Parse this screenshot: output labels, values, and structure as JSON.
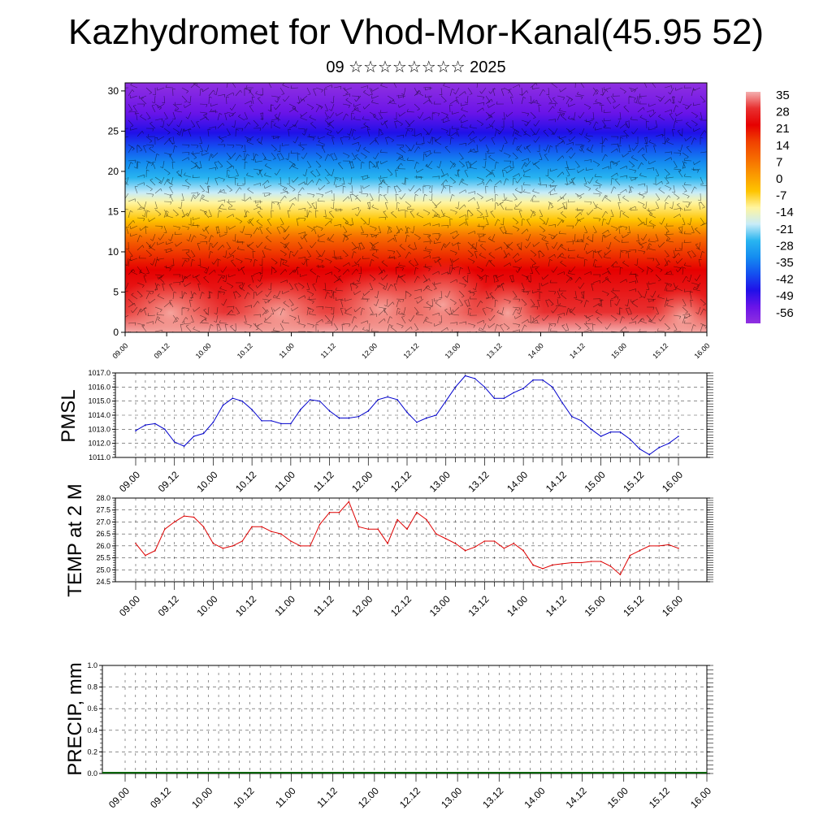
{
  "header": {
    "title": "Kazhydromet for Vhod-Mor-Kanal(45.95 52)",
    "subtitle": "09 ☆☆☆☆☆☆☆☆ 2025"
  },
  "chart_data": [
    {
      "type": "heatmap",
      "x_ticks": [
        "09.00",
        "09.12",
        "10.00",
        "10.12",
        "11.00",
        "11.12",
        "12.00",
        "12.12",
        "13.00",
        "13.12",
        "14.00",
        "14.12",
        "15.00",
        "15.12",
        "16.00"
      ],
      "y_ticks": [
        "0",
        "5",
        "10",
        "15",
        "20",
        "25",
        "30"
      ],
      "ylim": [
        0,
        31
      ],
      "colorbar": {
        "labels": [
          "35",
          "28",
          "21",
          "14",
          "7",
          "0",
          "-7",
          "-14",
          "-21",
          "-28",
          "-35",
          "-42",
          "-49",
          "-56"
        ],
        "colors": [
          "#f4b0b0",
          "#e83030",
          "#e60000",
          "#f04000",
          "#f66a00",
          "#fa9800",
          "#fec400",
          "#fff5a0",
          "#c8ecf8",
          "#28b4f0",
          "#148cf0",
          "#1450f0",
          "#2010e8",
          "#6a14e8",
          "#9030e0"
        ]
      },
      "overlay": "wind-barbs"
    },
    {
      "type": "line",
      "ylabel": "PMSL",
      "x_ticks": [
        "09.00",
        "09.12",
        "10.00",
        "10.12",
        "11.00",
        "11.12",
        "12.00",
        "12.12",
        "13.00",
        "13.12",
        "14.00",
        "14.12",
        "15.00",
        "15.12",
        "16.00"
      ],
      "y_ticks": [
        "1011.0",
        "1012.0",
        "1013.0",
        "1014.0",
        "1015.0",
        "1016.0",
        "1017.0"
      ],
      "ylim": [
        1011.0,
        1017.0
      ],
      "color": "#0000cc",
      "x_hours": [
        0,
        3,
        6,
        9,
        12,
        15,
        18,
        21,
        24,
        27,
        30,
        33,
        36,
        39,
        42,
        45,
        48,
        51,
        54,
        57,
        60,
        63,
        66,
        69,
        72,
        75,
        78,
        81,
        84,
        87,
        90,
        93,
        96,
        99,
        102,
        105,
        108,
        111,
        114,
        117,
        120,
        123,
        126,
        129,
        132,
        135,
        138,
        141,
        144,
        147,
        150,
        153,
        156,
        159,
        162,
        165,
        168
      ],
      "values": [
        1012.9,
        1013.3,
        1013.4,
        1013.0,
        1012.1,
        1011.8,
        1012.5,
        1012.7,
        1013.5,
        1014.7,
        1015.2,
        1015.0,
        1014.4,
        1013.6,
        1013.6,
        1013.4,
        1013.4,
        1014.4,
        1015.1,
        1015.0,
        1014.3,
        1013.8,
        1013.8,
        1013.9,
        1014.3,
        1015.1,
        1015.3,
        1015.1,
        1014.2,
        1013.5,
        1013.8,
        1014.0,
        1015.0,
        1016.0,
        1016.8,
        1016.6,
        1016.0,
        1015.2,
        1015.2,
        1015.6,
        1015.9,
        1016.5,
        1016.5,
        1016.0,
        1014.9,
        1013.9,
        1013.6,
        1013.0,
        1012.5,
        1012.8,
        1012.8,
        1012.3,
        1011.6,
        1011.2,
        1011.7,
        1012.0,
        1012.5
      ]
    },
    {
      "type": "line",
      "ylabel": "TEMP at 2 M",
      "x_ticks": [
        "09.00",
        "09.12",
        "10.00",
        "10.12",
        "11.00",
        "11.12",
        "12.00",
        "12.12",
        "13.00",
        "13.12",
        "14.00",
        "14.12",
        "15.00",
        "15.12",
        "16.00"
      ],
      "y_ticks": [
        "24.5",
        "25.0",
        "25.5",
        "26.0",
        "26.5",
        "27.0",
        "27.5",
        "28.0"
      ],
      "ylim": [
        24.5,
        28.0
      ],
      "color": "#dd0000",
      "x_hours": [
        0,
        3,
        6,
        9,
        12,
        15,
        18,
        21,
        24,
        27,
        30,
        33,
        36,
        39,
        42,
        45,
        48,
        51,
        54,
        57,
        60,
        63,
        66,
        69,
        72,
        75,
        78,
        81,
        84,
        87,
        90,
        93,
        96,
        99,
        102,
        105,
        108,
        111,
        114,
        117,
        120,
        123,
        126,
        129,
        132,
        135,
        138,
        141,
        144,
        147,
        150,
        153,
        156,
        159,
        162,
        165,
        168
      ],
      "values": [
        26.1,
        25.6,
        25.8,
        26.7,
        27.0,
        27.25,
        27.2,
        26.8,
        26.1,
        25.9,
        26.0,
        26.2,
        26.8,
        26.8,
        26.6,
        26.5,
        26.2,
        26.0,
        26.0,
        26.9,
        27.4,
        27.4,
        27.85,
        26.8,
        26.7,
        26.7,
        26.1,
        27.1,
        26.7,
        27.4,
        27.1,
        26.5,
        26.3,
        26.1,
        25.8,
        25.95,
        26.2,
        26.2,
        25.9,
        26.1,
        25.8,
        25.2,
        25.05,
        25.2,
        25.25,
        25.3,
        25.3,
        25.35,
        25.35,
        25.15,
        24.8,
        25.6,
        25.8,
        26.0,
        26.0,
        26.05,
        25.9
      ]
    },
    {
      "type": "bar",
      "ylabel": "PRECIP, mm",
      "x_ticks": [
        "09.00",
        "09.12",
        "10.00",
        "10.12",
        "11.00",
        "11.12",
        "12.00",
        "12.12",
        "13.00",
        "13.12",
        "14.00",
        "14.12",
        "15.00",
        "15.12",
        "16.00"
      ],
      "y_ticks": [
        "0.0",
        "0.2",
        "0.4",
        "0.6",
        "0.8",
        "1.0"
      ],
      "ylim": [
        0.0,
        1.0
      ],
      "color": "#006400",
      "values": []
    }
  ]
}
